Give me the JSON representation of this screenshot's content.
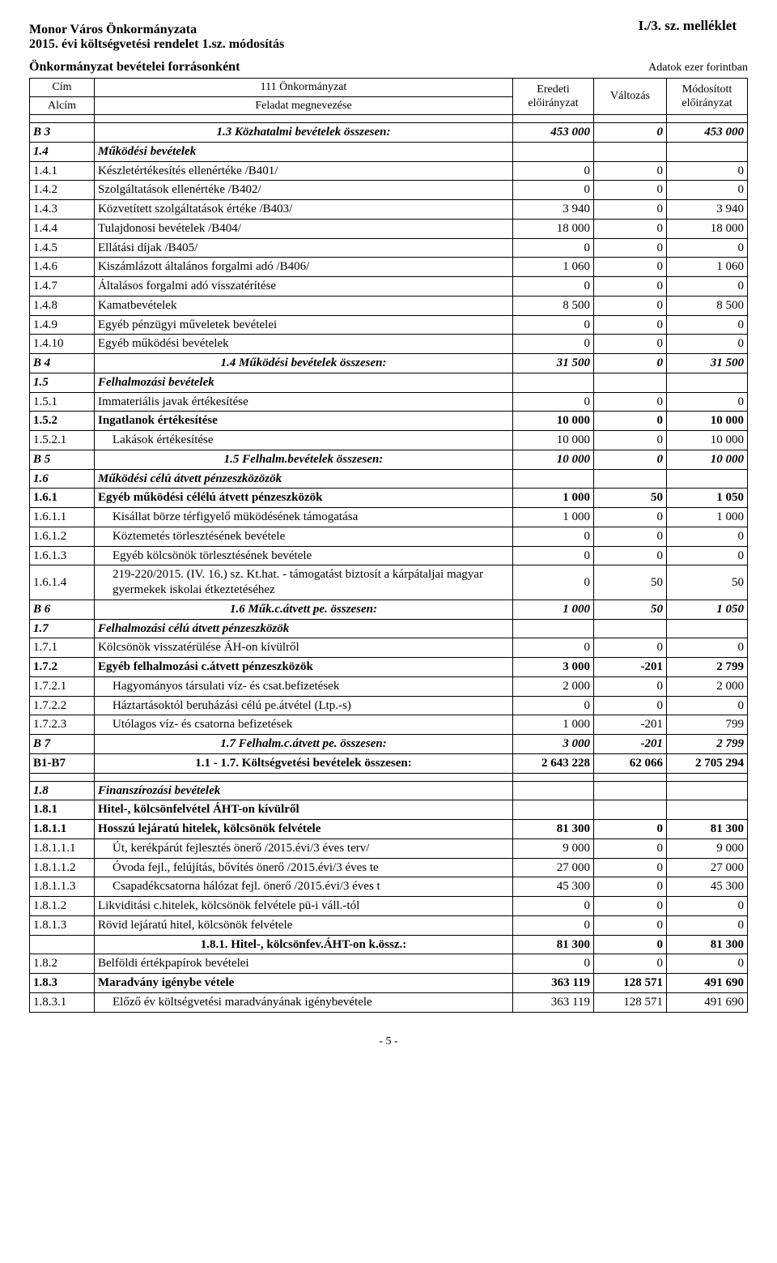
{
  "annex": "I./3. sz. melléklet",
  "org_line1": "Monor Város Önkormányzata",
  "org_line2": "2015. évi költségvetési rendelet 1.sz. módosítás",
  "section_title": "Önkormányzat bevételei forrásonként",
  "unit_note": "Adatok ezer forintban",
  "head": {
    "cim": "Cím",
    "alcim": "Alcím",
    "h1": "111 Önkormányzat",
    "h2": "Feladat megnevezése",
    "c1": "Eredeti előirányzat",
    "c2": "Változás",
    "c3": "Módosított előirányzat"
  },
  "rows": [
    {
      "code": "B 3",
      "label": "1.3 Közhatalmi bevételek összesen:",
      "v1": "453 000",
      "v2": "0",
      "v3": "453 000",
      "cls": "bold italic",
      "lblcls": "center"
    },
    {
      "code": "1.4",
      "label": "Működési bevételek",
      "cls": "bold italic"
    },
    {
      "code": "1.4.1",
      "label": "Készletértékesítés ellenértéke /B401/",
      "v1": "0",
      "v2": "0",
      "v3": "0"
    },
    {
      "code": "1.4.2",
      "label": "Szolgáltatások ellenértéke /B402/",
      "v1": "0",
      "v2": "0",
      "v3": "0"
    },
    {
      "code": "1.4.3",
      "label": "Közvetített szolgáltatások értéke /B403/",
      "v1": "3 940",
      "v2": "0",
      "v3": "3 940"
    },
    {
      "code": "1.4.4",
      "label": "Tulajdonosi bevételek /B404/",
      "v1": "18 000",
      "v2": "0",
      "v3": "18 000"
    },
    {
      "code": "1.4.5",
      "label": "Ellátási díjak /B405/",
      "v1": "0",
      "v2": "0",
      "v3": "0"
    },
    {
      "code": "1.4.6",
      "label": "Kiszámlázott általános forgalmi adó /B406/",
      "v1": "1 060",
      "v2": "0",
      "v3": "1 060"
    },
    {
      "code": "1.4.7",
      "label": "Általásos forgalmi adó visszatérítése",
      "v1": "0",
      "v2": "0",
      "v3": "0"
    },
    {
      "code": "1.4.8",
      "label": "Kamatbevételek",
      "v1": "8 500",
      "v2": "0",
      "v3": "8 500"
    },
    {
      "code": "1.4.9",
      "label": "Egyéb pénzügyi műveletek bevételei",
      "v1": "0",
      "v2": "0",
      "v3": "0"
    },
    {
      "code": "1.4.10",
      "label": "Egyéb működési bevételek",
      "v1": "0",
      "v2": "0",
      "v3": "0"
    },
    {
      "code": "B 4",
      "label": "1.4 Működési bevételek összesen:",
      "v1": "31 500",
      "v2": "0",
      "v3": "31 500",
      "cls": "bold italic",
      "lblcls": "center"
    },
    {
      "code": "1.5",
      "label": "Felhalmozási bevételek",
      "cls": "bold italic"
    },
    {
      "code": "1.5.1",
      "label": "Immateriális javak értékesítése",
      "v1": "0",
      "v2": "0",
      "v3": "0"
    },
    {
      "code": "1.5.2",
      "label": "Ingatlanok értékesítése",
      "v1": "10 000",
      "v2": "0",
      "v3": "10 000",
      "cls": "bold"
    },
    {
      "code": "1.5.2.1",
      "label": "Lakások értékesítése",
      "v1": "10 000",
      "v2": "0",
      "v3": "10 000",
      "indent": "indent-1"
    },
    {
      "code": "B 5",
      "label": "1.5 Felhalm.bevételek összesen:",
      "v1": "10 000",
      "v2": "0",
      "v3": "10 000",
      "cls": "bold italic",
      "lblcls": "center"
    },
    {
      "code": "1.6",
      "label": "Működési célú átvett pénzeszközözök",
      "cls": "bold italic"
    },
    {
      "code": "1.6.1",
      "label": "Egyéb működési célélú átvett pénzeszközök",
      "v1": "1 000",
      "v2": "50",
      "v3": "1 050",
      "cls": "bold"
    },
    {
      "code": "1.6.1.1",
      "label": "Kisállat börze térfigyelő müködésének támogatása",
      "v1": "1 000",
      "v2": "0",
      "v3": "1 000",
      "indent": "indent-1"
    },
    {
      "code": "1.6.1.2",
      "label": "Köztemetés törlesztésének bevétele",
      "v1": "0",
      "v2": "0",
      "v3": "0",
      "indent": "indent-1"
    },
    {
      "code": "1.6.1.3",
      "label": "Egyéb kölcsönök törlesztésének bevétele",
      "v1": "0",
      "v2": "0",
      "v3": "0",
      "indent": "indent-1"
    },
    {
      "code": "1.6.1.4",
      "label": "219-220/2015. (IV. 16.) sz. Kt.hat. - támogatást biztosít a kárpátaljai magyar gyermekek iskolai étkeztetéséhez",
      "v1": "0",
      "v2": "50",
      "v3": "50",
      "indent": "indent-1"
    },
    {
      "code": "B 6",
      "label": "1.6 Műk.c.átvett pe. összesen:",
      "v1": "1 000",
      "v2": "50",
      "v3": "1 050",
      "cls": "bold italic",
      "lblcls": "center"
    },
    {
      "code": "1.7",
      "label": "Felhalmozási célú átvett pénzeszközök",
      "cls": "bold italic"
    },
    {
      "code": "1.7.1",
      "label": "Kölcsönök visszatérülése ÁH-on kívülről",
      "v1": "0",
      "v2": "0",
      "v3": "0"
    },
    {
      "code": "1.7.2",
      "label": "Egyéb felhalmozási c.átvett pénzeszközök",
      "v1": "3 000",
      "v2": "-201",
      "v3": "2 799",
      "cls": "bold"
    },
    {
      "code": "1.7.2.1",
      "label": "Hagyományos társulati víz- és csat.befizetések",
      "v1": "2 000",
      "v2": "0",
      "v3": "2 000",
      "indent": "indent-1"
    },
    {
      "code": "1.7.2.2",
      "label": "Háztartásoktól beruházási célú pe.átvétel (Ltp.-s)",
      "v1": "0",
      "v2": "0",
      "v3": "0",
      "indent": "indent-1"
    },
    {
      "code": "1.7.2.3",
      "label": "Utólagos víz- és csatorna befizetések",
      "v1": "1 000",
      "v2": "-201",
      "v3": "799",
      "indent": "indent-1"
    },
    {
      "code": "B 7",
      "label": "1.7 Felhalm.c.átvett pe. összesen:",
      "v1": "3 000",
      "v2": "-201",
      "v3": "2 799",
      "cls": "bold italic",
      "lblcls": "center"
    },
    {
      "code": "B1-B7",
      "label": "1.1 - 1.7. Költségvetési bevételek összesen:",
      "v1": "2 643 228",
      "v2": "62 066",
      "v3": "2 705 294",
      "cls": "bold",
      "lblcls": "center"
    }
  ],
  "rows2": [
    {
      "code": "1.8",
      "label": "Finanszírozási bevételek",
      "cls": "bold italic"
    },
    {
      "code": "1.8.1",
      "label": "Hitel-, kölcsönfelvétel ÁHT-on kívülről",
      "cls": "bold"
    },
    {
      "code": "1.8.1.1",
      "label": "Hosszú lejáratú hitelek, kölcsönök felvétele",
      "v1": "81 300",
      "v2": "0",
      "v3": "81 300",
      "cls": "bold"
    },
    {
      "code": "1.8.1.1.1",
      "label": "Út, kerékpárút fejlesztés önerő /2015.évi/3 éves terv/",
      "v1": "9 000",
      "v2": "0",
      "v3": "9 000",
      "indent": "indent-1"
    },
    {
      "code": "1.8.1.1.2",
      "label": "Óvoda fejl., felújítás, bővítés önerő /2015.évi/3 éves te",
      "v1": "27 000",
      "v2": "0",
      "v3": "27 000",
      "indent": "indent-1"
    },
    {
      "code": "1.8.1.1.3",
      "label": "Csapadékcsatorna hálózat fejl. önerő /2015.évi/3 éves t",
      "v1": "45 300",
      "v2": "0",
      "v3": "45 300",
      "indent": "indent-1"
    },
    {
      "code": "1.8.1.2",
      "label": "Likviditási c.hitelek, kölcsönök felvétele pü-i váll.-tól",
      "v1": "0",
      "v2": "0",
      "v3": "0"
    },
    {
      "code": "1.8.1.3",
      "label": "Rövid lejáratú hitel, kölcsönök felvétele",
      "v1": "0",
      "v2": "0",
      "v3": "0"
    },
    {
      "code": "",
      "label": "1.8.1. Hitel-, kölcsönfev.ÁHT-on k.össz.:",
      "v1": "81 300",
      "v2": "0",
      "v3": "81 300",
      "cls": "bold",
      "lblcls": "center"
    },
    {
      "code": "1.8.2",
      "label": "Belföldi értékpapírok bevételei",
      "v1": "0",
      "v2": "0",
      "v3": "0"
    },
    {
      "code": "1.8.3",
      "label": "Maradvány igénybe vétele",
      "v1": "363 119",
      "v2": "128 571",
      "v3": "491 690",
      "cls": "bold"
    },
    {
      "code": "1.8.3.1",
      "label": "Előző év költségvetési maradványának igénybevétele",
      "v1": "363 119",
      "v2": "128 571",
      "v3": "491 690",
      "indent": "indent-1"
    }
  ],
  "page_footer": "- 5 -"
}
